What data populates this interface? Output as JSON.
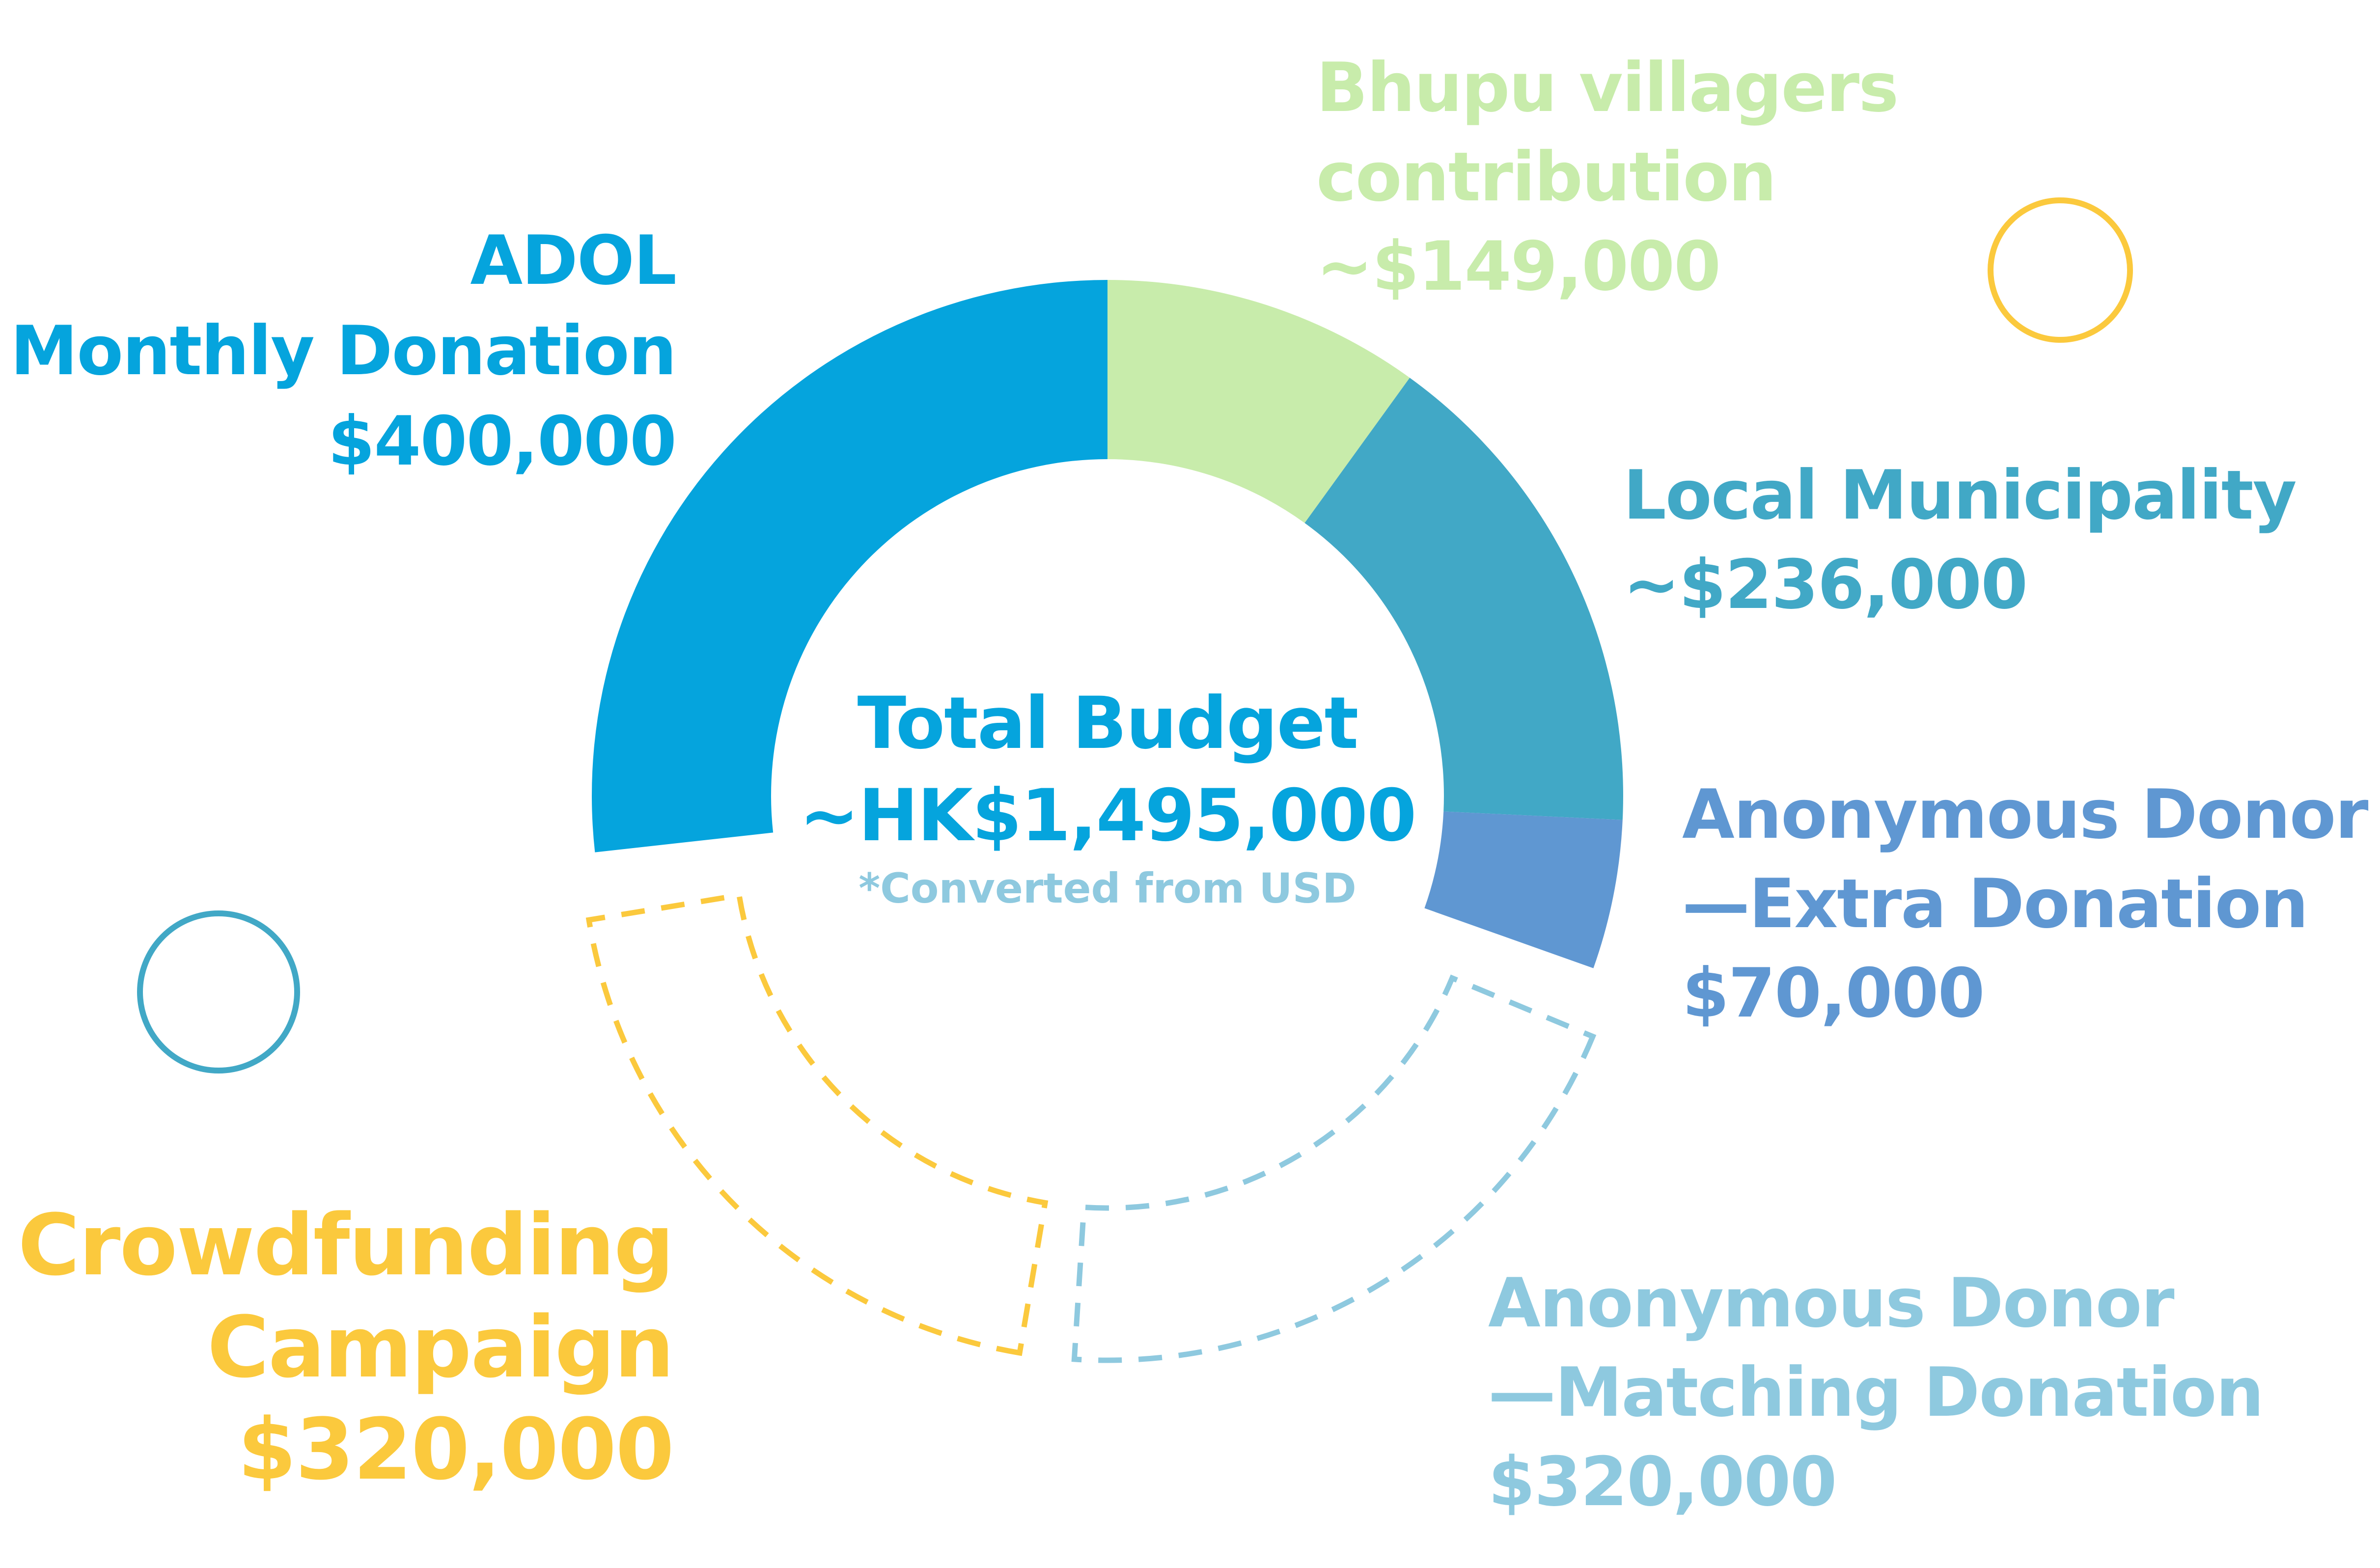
{
  "chart_data": {
    "type": "donut",
    "center": {
      "title": "Total Budget",
      "value": "~HK$1,495,000",
      "note": "*Converted from USD"
    },
    "slices": [
      {
        "name": "ADOL Monthly Donation",
        "lines": [
          "ADOL",
          "Monthly Donation",
          "$400,000"
        ],
        "value": 400000,
        "color": "#05a4dd",
        "style": "solid"
      },
      {
        "name": "Bhupu villagers contribution",
        "lines": [
          "Bhupu villagers",
          "contribution",
          "~$149,000"
        ],
        "value": 149000,
        "color": "#c8ecab",
        "style": "solid"
      },
      {
        "name": "Local Municipality",
        "lines": [
          "Local Municipality",
          "~$236,000"
        ],
        "value": 236000,
        "color": "#41a8c6",
        "style": "solid"
      },
      {
        "name": "Anonymous Donor —Extra Donation",
        "lines": [
          "Anonymous Donor",
          "—Extra Donation",
          "$70,000"
        ],
        "value": 70000,
        "color": "#5f97d2",
        "style": "solid"
      },
      {
        "name": "Anonymous Donor —Matching Donation",
        "lines": [
          "Anonymous Donor",
          "—Matching Donation",
          "$320,000"
        ],
        "value": 320000,
        "color": "#8ec9df",
        "style": "dashed"
      },
      {
        "name": "Crowdfunding Campaign",
        "lines": [
          "Crowdfunding",
          "Campaign",
          "$320,000"
        ],
        "value": 320000,
        "color": "#fbc93d",
        "style": "dashed"
      }
    ],
    "decorations": [
      {
        "kind": "ring",
        "color": "#fbc93d"
      },
      {
        "kind": "ring",
        "color": "#41a8c6"
      }
    ]
  }
}
